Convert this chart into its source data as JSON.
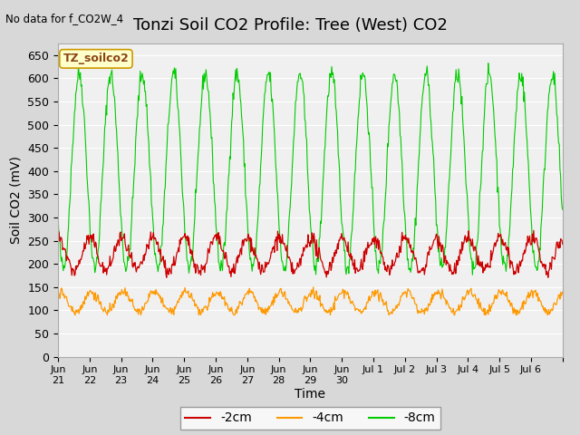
{
  "title": "Tonzi Soil CO2 Profile: Tree (West) CO2",
  "subtitle": "No data for f_CO2W_4",
  "ylabel": "Soil CO2 (mV)",
  "xlabel": "Time",
  "watermark": "TZ_soilco2",
  "ylim": [
    0,
    675
  ],
  "yticks": [
    0,
    50,
    100,
    150,
    200,
    250,
    300,
    350,
    400,
    450,
    500,
    550,
    600,
    650
  ],
  "xtick_labels": [
    "Jun\n21",
    "Jun\n22",
    "Jun\n23",
    "Jun\n24",
    "Jun\n25",
    "Jun\n26",
    "Jun\n27",
    "Jun\n28",
    "Jun\n29",
    "Jun\n30",
    "Jul 1",
    "Jul 2",
    "Jul 3",
    "Jul 4",
    "Jul 5",
    "Jul 6"
  ],
  "colors": {
    "2cm": "#cc0000",
    "4cm": "#ff9900",
    "8cm": "#00cc00"
  },
  "legend_labels": [
    "-2cm",
    "-4cm",
    "-8cm"
  ],
  "background_color": "#e8e8e8",
  "plot_bg_color": "#f0f0f0",
  "title_fontsize": 13,
  "axis_label_fontsize": 10,
  "tick_fontsize": 9
}
